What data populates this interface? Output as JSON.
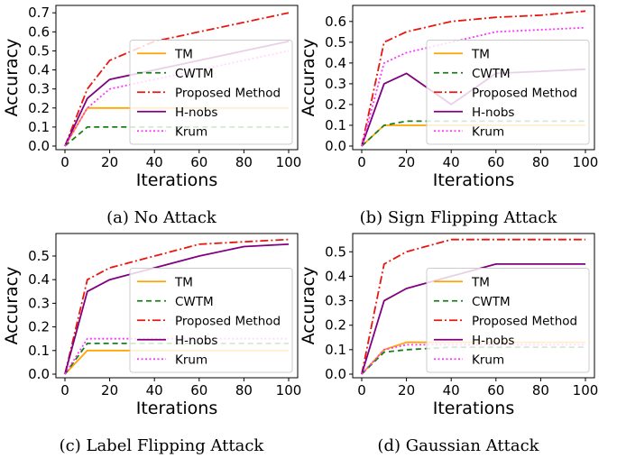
{
  "styles": {
    "TM": {
      "color": "#ffa500",
      "dash": ""
    },
    "CWTM": {
      "color": "#1a7f1a",
      "dash": "6,4"
    },
    "Proposed Method": {
      "color": "#e8170f",
      "dash": "9,3,2,3"
    },
    "H-nobs": {
      "color": "#800080",
      "dash": ""
    },
    "Krum": {
      "color": "#ff33ff",
      "dash": "2,2.5"
    }
  },
  "chart_data": [
    {
      "type": "line",
      "caption": "(a) No Attack",
      "xlabel": "Iterations",
      "ylabel": "Accuracy",
      "xlim": [
        0,
        100
      ],
      "ylim": [
        0,
        0.72
      ],
      "xticks": [
        0,
        20,
        40,
        60,
        80,
        100
      ],
      "yticks": [
        0.0,
        0.1,
        0.2,
        0.3,
        0.4,
        0.5,
        0.6,
        0.7
      ],
      "ytick_labels": [
        "0.0",
        "0.1",
        "0.2",
        "0.3",
        "0.4",
        "0.5",
        "0.6",
        "0.7"
      ],
      "legend_loc": "lower right",
      "x": [
        0,
        10,
        20,
        40,
        60,
        80,
        100
      ],
      "series": [
        {
          "name": "TM",
          "values": [
            0.0,
            0.2,
            0.2,
            0.2,
            0.2,
            0.2,
            0.2
          ]
        },
        {
          "name": "CWTM",
          "values": [
            0.0,
            0.1,
            0.1,
            0.1,
            0.1,
            0.1,
            0.1
          ]
        },
        {
          "name": "Proposed Method",
          "values": [
            0.0,
            0.3,
            0.45,
            0.55,
            0.6,
            0.65,
            0.7
          ]
        },
        {
          "name": "H-nobs",
          "values": [
            0.0,
            0.25,
            0.35,
            0.4,
            0.45,
            0.5,
            0.55
          ]
        },
        {
          "name": "Krum",
          "values": [
            0.0,
            0.2,
            0.3,
            0.35,
            0.4,
            0.45,
            0.5
          ]
        }
      ]
    },
    {
      "type": "line",
      "caption": "(b) Sign Flipping Attack",
      "xlabel": "Iterations",
      "ylabel": "Accuracy",
      "xlim": [
        0,
        100
      ],
      "ylim": [
        0,
        0.66
      ],
      "xticks": [
        0,
        20,
        40,
        60,
        80,
        100
      ],
      "yticks": [
        0.0,
        0.1,
        0.2,
        0.3,
        0.4,
        0.5,
        0.6
      ],
      "ytick_labels": [
        "0.0",
        "0.1",
        "0.2",
        "0.3",
        "0.4",
        "0.5",
        "0.6"
      ],
      "legend_loc": "lower right",
      "x": [
        0,
        10,
        20,
        40,
        60,
        80,
        100
      ],
      "series": [
        {
          "name": "TM",
          "values": [
            0.0,
            0.1,
            0.1,
            0.1,
            0.1,
            0.1,
            0.1
          ]
        },
        {
          "name": "CWTM",
          "values": [
            0.0,
            0.1,
            0.12,
            0.12,
            0.12,
            0.12,
            0.12
          ]
        },
        {
          "name": "Proposed Method",
          "values": [
            0.0,
            0.5,
            0.55,
            0.6,
            0.62,
            0.63,
            0.65
          ]
        },
        {
          "name": "H-nobs",
          "values": [
            0.0,
            0.3,
            0.35,
            0.2,
            0.35,
            0.36,
            0.37
          ]
        },
        {
          "name": "Krum",
          "values": [
            0.0,
            0.4,
            0.45,
            0.5,
            0.55,
            0.56,
            0.57
          ]
        }
      ]
    },
    {
      "type": "line",
      "caption": "(c) Label Flipping Attack",
      "xlabel": "Iterations",
      "ylabel": "Accuracy",
      "xlim": [
        0,
        100
      ],
      "ylim": [
        0,
        0.58
      ],
      "xticks": [
        0,
        20,
        40,
        60,
        80,
        100
      ],
      "yticks": [
        0.0,
        0.1,
        0.2,
        0.3,
        0.4,
        0.5
      ],
      "ytick_labels": [
        "0.0",
        "0.1",
        "0.2",
        "0.3",
        "0.4",
        "0.5"
      ],
      "legend_loc": "lower right",
      "x": [
        0,
        10,
        20,
        40,
        60,
        80,
        100
      ],
      "series": [
        {
          "name": "TM",
          "values": [
            0.0,
            0.1,
            0.1,
            0.1,
            0.1,
            0.1,
            0.1
          ]
        },
        {
          "name": "CWTM",
          "values": [
            0.0,
            0.13,
            0.13,
            0.13,
            0.13,
            0.13,
            0.13
          ]
        },
        {
          "name": "Proposed Method",
          "values": [
            0.0,
            0.4,
            0.45,
            0.5,
            0.55,
            0.56,
            0.57
          ]
        },
        {
          "name": "H-nobs",
          "values": [
            0.0,
            0.35,
            0.4,
            0.45,
            0.5,
            0.54,
            0.55
          ]
        },
        {
          "name": "Krum",
          "values": [
            0.0,
            0.15,
            0.15,
            0.15,
            0.15,
            0.15,
            0.15
          ]
        }
      ]
    },
    {
      "type": "line",
      "caption": "(d) Gaussian Attack",
      "xlabel": "Iterations",
      "ylabel": "Accuracy",
      "xlim": [
        0,
        100
      ],
      "ylim": [
        0,
        0.56
      ],
      "xticks": [
        0,
        20,
        40,
        60,
        80,
        100
      ],
      "yticks": [
        0.0,
        0.1,
        0.2,
        0.3,
        0.4,
        0.5
      ],
      "ytick_labels": [
        "0.0",
        "0.1",
        "0.2",
        "0.3",
        "0.4",
        "0.5"
      ],
      "legend_loc": "lower right",
      "x": [
        0,
        10,
        20,
        40,
        60,
        80,
        100
      ],
      "series": [
        {
          "name": "TM",
          "values": [
            0.0,
            0.1,
            0.13,
            0.13,
            0.13,
            0.13,
            0.13
          ]
        },
        {
          "name": "CWTM",
          "values": [
            0.0,
            0.09,
            0.1,
            0.11,
            0.11,
            0.11,
            0.11
          ]
        },
        {
          "name": "Proposed Method",
          "values": [
            0.0,
            0.45,
            0.5,
            0.55,
            0.55,
            0.55,
            0.55
          ]
        },
        {
          "name": "H-nobs",
          "values": [
            0.0,
            0.3,
            0.35,
            0.4,
            0.45,
            0.45,
            0.45
          ]
        },
        {
          "name": "Krum",
          "values": [
            0.0,
            0.1,
            0.12,
            0.12,
            0.12,
            0.12,
            0.12
          ]
        }
      ]
    }
  ]
}
